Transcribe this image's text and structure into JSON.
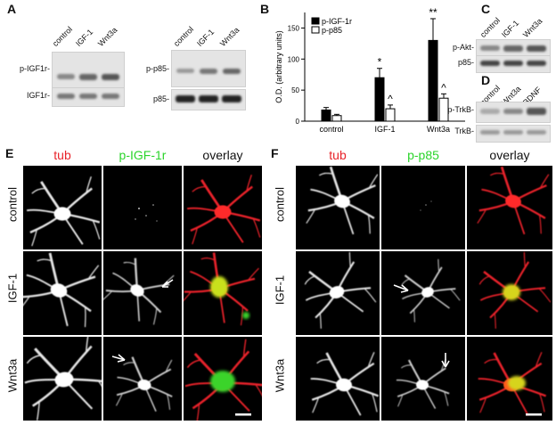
{
  "panel_a": {
    "letter": "A",
    "blot1_lanes": [
      "control",
      "IGF-1",
      "Wnt3a"
    ],
    "blot1_rows": [
      "p-IGF1r-",
      "IGF1r-"
    ],
    "blot2_lanes": [
      "control",
      "IGF-1",
      "Wnt3a"
    ],
    "blot2_rows": [
      "p-p85-",
      "p85-"
    ]
  },
  "panel_b": {
    "letter": "B"
  },
  "chart_data": {
    "type": "bar",
    "title": "",
    "ylabel": "O.D. (arbitrary units)",
    "xlabel": "",
    "categories": [
      "control",
      "IGF-1",
      "Wnt3a"
    ],
    "series": [
      {
        "name": "p-IGF-1r",
        "values": [
          18,
          70,
          130
        ],
        "errors": [
          4,
          15,
          35
        ],
        "color": "#000000"
      },
      {
        "name": "p-p85",
        "values": [
          9,
          20,
          37
        ],
        "errors": [
          2,
          6,
          7
        ],
        "color": "#ffffff"
      }
    ],
    "yticks": [
      0,
      50,
      100,
      150
    ],
    "ylim": [
      0,
      175
    ],
    "annotations": [
      {
        "category": "IGF-1",
        "series": "p-IGF-1r",
        "text": "*"
      },
      {
        "category": "IGF-1",
        "series": "p-p85",
        "text": "^"
      },
      {
        "category": "Wnt3a",
        "series": "p-IGF-1r",
        "text": "**"
      },
      {
        "category": "Wnt3a",
        "series": "p-p85",
        "text": "^"
      }
    ],
    "legend": "top-left"
  },
  "panel_c": {
    "letter": "C",
    "lanes": [
      "control",
      "IGF-1",
      "Wnt3a"
    ],
    "rows": [
      "p-Akt-",
      "p85-"
    ]
  },
  "panel_d": {
    "letter": "D",
    "lanes": [
      "control",
      "Wnt3a",
      "BDNF"
    ],
    "rows": [
      "p-TrkB-",
      "TrkB-"
    ]
  },
  "panel_e": {
    "letter": "E",
    "columns": [
      "tub",
      "p-IGF-1r",
      "overlay"
    ],
    "column_colors": [
      "#e8232a",
      "#2bd42b",
      "#111111"
    ],
    "rows": [
      "control",
      "IGF-1",
      "Wnt3a"
    ]
  },
  "panel_f": {
    "letter": "F",
    "columns": [
      "tub",
      "p-p85",
      "overlay"
    ],
    "column_colors": [
      "#e8232a",
      "#2bd42b",
      "#111111"
    ],
    "rows": [
      "control",
      "IGF-1",
      "Wnt3a"
    ]
  }
}
